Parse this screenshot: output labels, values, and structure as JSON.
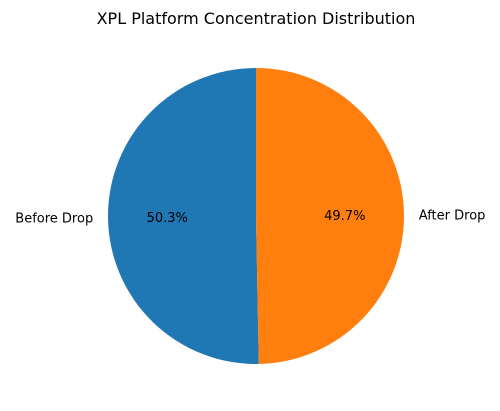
{
  "chart_data": {
    "type": "pie",
    "title": "XPL Platform Concentration Distribution",
    "slices": [
      {
        "label": "Before Drop",
        "value": 50.3,
        "pct_label": "50.3%",
        "color": "#1f77b4"
      },
      {
        "label": "After Drop",
        "value": 49.7,
        "pct_label": "49.7%",
        "color": "#ff7f0e"
      }
    ],
    "start_angle_deg": 90,
    "direction": "counterclockwise"
  }
}
